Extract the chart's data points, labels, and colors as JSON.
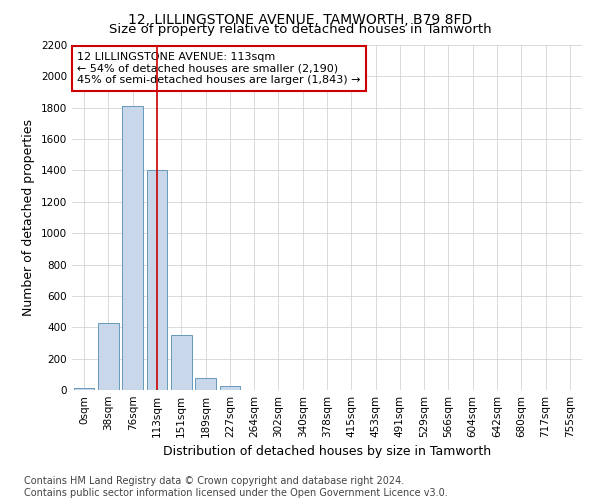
{
  "title": "12, LILLINGSTONE AVENUE, TAMWORTH, B79 8FD",
  "subtitle": "Size of property relative to detached houses in Tamworth",
  "xlabel": "Distribution of detached houses by size in Tamworth",
  "ylabel": "Number of detached properties",
  "categories": [
    "0sqm",
    "38sqm",
    "76sqm",
    "113sqm",
    "151sqm",
    "189sqm",
    "227sqm",
    "264sqm",
    "302sqm",
    "340sqm",
    "378sqm",
    "415sqm",
    "453sqm",
    "491sqm",
    "529sqm",
    "566sqm",
    "604sqm",
    "642sqm",
    "680sqm",
    "717sqm",
    "755sqm"
  ],
  "values": [
    15,
    430,
    1810,
    1400,
    350,
    75,
    25,
    0,
    0,
    0,
    0,
    0,
    0,
    0,
    0,
    0,
    0,
    0,
    0,
    0,
    0
  ],
  "bar_color": "#c8d8ea",
  "bar_edge_color": "#6699bb",
  "highlight_index": 3,
  "highlight_line_color": "#cc0000",
  "annotation_text": "12 LILLINGSTONE AVENUE: 113sqm\n← 54% of detached houses are smaller (2,190)\n45% of semi-detached houses are larger (1,843) →",
  "annotation_box_color": "#ffffff",
  "annotation_box_edge_color": "#cc0000",
  "ylim": [
    0,
    2200
  ],
  "yticks": [
    0,
    200,
    400,
    600,
    800,
    1000,
    1200,
    1400,
    1600,
    1800,
    2000,
    2200
  ],
  "footer_line1": "Contains HM Land Registry data © Crown copyright and database right 2024.",
  "footer_line2": "Contains public sector information licensed under the Open Government Licence v3.0.",
  "bg_color": "#ffffff",
  "plot_bg_color": "#ffffff",
  "grid_color": "#cccccc",
  "title_fontsize": 10,
  "subtitle_fontsize": 9.5,
  "axis_label_fontsize": 9,
  "tick_fontsize": 7.5,
  "footer_fontsize": 7,
  "annotation_fontsize": 8
}
